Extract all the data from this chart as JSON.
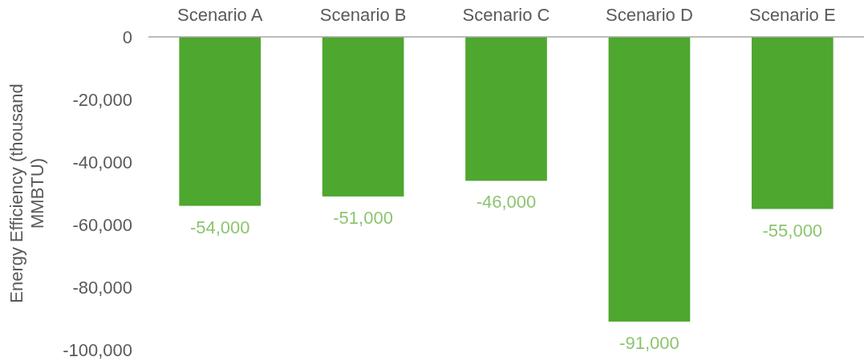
{
  "chart_data": {
    "type": "bar",
    "ylabel": "Energy Efficiency (thousand MMBTU)",
    "categories": [
      "Scenario A",
      "Scenario B",
      "Scenario C",
      "Scenario D",
      "Scenario E"
    ],
    "values": [
      -54000,
      -51000,
      -46000,
      -91000,
      -55000
    ],
    "color": "#4ea72e",
    "ylim": [
      -100000,
      0
    ],
    "yticks": [
      {
        "value": 0,
        "label": "0"
      },
      {
        "value": -20000,
        "label": "-20,000"
      },
      {
        "value": -40000,
        "label": "-40,000"
      },
      {
        "value": -60000,
        "label": "-60,000"
      },
      {
        "value": -80000,
        "label": "-80,000"
      },
      {
        "value": -100000,
        "label": "-100,000"
      }
    ],
    "value_labels": [
      "-54,000",
      "-51,000",
      "-46,000",
      "-91,000",
      "-55,000"
    ],
    "grid": false
  }
}
